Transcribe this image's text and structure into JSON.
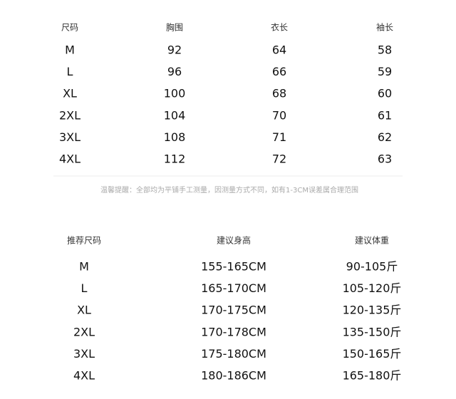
{
  "size_table": {
    "headers": [
      "尺码",
      "胸围",
      "衣长",
      "袖长"
    ],
    "rows": [
      [
        "M",
        "92",
        "64",
        "58"
      ],
      [
        "L",
        "96",
        "66",
        "59"
      ],
      [
        "XL",
        "100",
        "68",
        "60"
      ],
      [
        "2XL",
        "104",
        "70",
        "61"
      ],
      [
        "3XL",
        "108",
        "71",
        "62"
      ],
      [
        "4XL",
        "112",
        "72",
        "63"
      ]
    ]
  },
  "note": "温馨提醒：全部均为平铺手工测量，因测量方式不同，如有1-3CM误差属合理范围",
  "recommend_table": {
    "headers": [
      "推荐尺码",
      "建议身高",
      "建议体重"
    ],
    "rows": [
      [
        "M",
        "155-165CM",
        "90-105斤"
      ],
      [
        "L",
        "165-170CM",
        "105-120斤"
      ],
      [
        "XL",
        "170-175CM",
        "120-135斤"
      ],
      [
        "2XL",
        "170-178CM",
        "135-150斤"
      ],
      [
        "3XL",
        "175-180CM",
        "150-165斤"
      ],
      [
        "4XL",
        "180-186CM",
        "165-180斤"
      ]
    ]
  }
}
